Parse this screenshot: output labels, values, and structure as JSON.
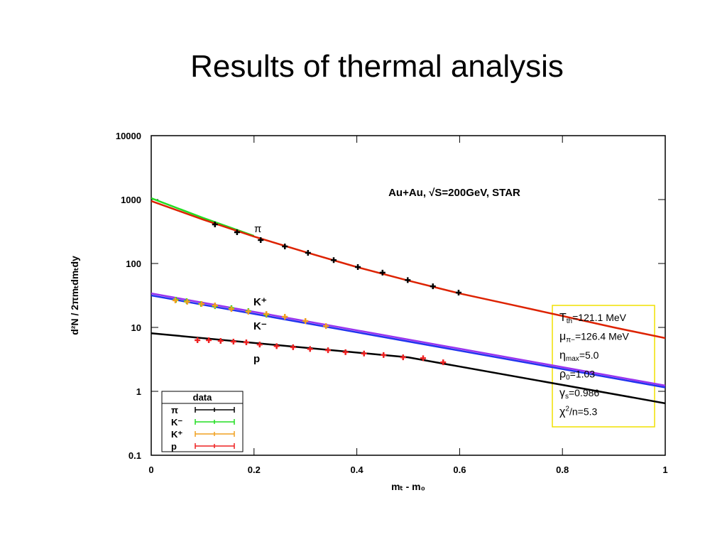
{
  "header": {
    "title": "Results of thermal analysis"
  },
  "chart_data": {
    "type": "scatter",
    "ylog": true,
    "xlabel": "mₜ - m₀",
    "ylabel": "d²N / 2πmₜdmₜdy",
    "annotation": "Au+Au, √S=200GeV, STAR",
    "xlim": [
      0,
      1
    ],
    "xticks": [
      0,
      0.2,
      0.4,
      0.6,
      0.8,
      1
    ],
    "ylim": [
      0.1,
      10000
    ],
    "yticks": [
      0.1,
      1,
      10,
      100,
      1000,
      10000
    ],
    "legend_title": "data",
    "legend": "lower left",
    "series": [
      {
        "name": "π",
        "color": "#000000",
        "x": [
          0.124,
          0.167,
          0.213,
          0.26,
          0.305,
          0.355,
          0.402,
          0.45,
          0.499,
          0.548,
          0.598
        ],
        "values": [
          409,
          308,
          233,
          185,
          147,
          113,
          88,
          72,
          55,
          44,
          35
        ]
      },
      {
        "name": "K⁻",
        "color": "#22dd22",
        "x": [
          0.048,
          0.069,
          0.097,
          0.124,
          0.156,
          0.189,
          0.224
        ],
        "values": [
          27.1,
          25.8,
          23.3,
          21.5,
          20,
          18,
          15.8
        ]
      },
      {
        "name": "K⁺",
        "color": "#f0a020",
        "x": [
          0.047,
          0.07,
          0.098,
          0.124,
          0.156,
          0.189,
          0.224,
          0.26,
          0.3,
          0.34
        ],
        "values": [
          26.5,
          25.2,
          23.3,
          22,
          19.4,
          17.6,
          16.2,
          14.7,
          12.6,
          10.5
        ]
      },
      {
        "name": "p",
        "color": "#ee2222",
        "x": [
          0.09,
          0.112,
          0.135,
          0.16,
          0.185,
          0.211,
          0.244,
          0.276,
          0.309,
          0.344,
          0.378,
          0.414,
          0.452,
          0.49,
          0.529,
          0.568
        ],
        "values": [
          6.3,
          6.3,
          6.15,
          6.0,
          5.85,
          5.4,
          5.1,
          4.9,
          4.6,
          4.4,
          4.1,
          3.9,
          3.7,
          3.4,
          3.3,
          2.85
        ]
      }
    ],
    "fits": [
      {
        "color": "#22dd22",
        "x": [
          0,
          0.1,
          0.2
        ],
        "values": [
          1050,
          520,
          270
        ]
      },
      {
        "color": "#dd2200",
        "x": [
          0,
          0.1,
          0.2,
          0.3,
          0.4,
          0.5,
          0.6,
          0.7,
          0.8,
          0.9,
          1
        ],
        "values": [
          950,
          489,
          264,
          151,
          88,
          54,
          34,
          22.7,
          15.1,
          10,
          6.8
        ]
      },
      {
        "color": "#9933ee",
        "x": [
          0,
          1
        ],
        "values": [
          34,
          1.23
        ]
      },
      {
        "color": "#2233ee",
        "x": [
          0,
          1
        ],
        "values": [
          31.6,
          1.15
        ]
      },
      {
        "color": "#000000",
        "x": [
          0,
          0.5,
          1
        ],
        "values": [
          8.1,
          3.4,
          0.65
        ]
      }
    ],
    "curve_labels": [
      "π",
      "K⁺",
      "K⁻",
      "p"
    ],
    "params": [
      {
        "main": "T",
        "sub": "th",
        "rest": "=121.1 MeV"
      },
      {
        "main": "μ",
        "sub": "π−",
        "rest": "=126.4 MeV"
      },
      {
        "main": "η",
        "sub": "max",
        "rest": "=5.0"
      },
      {
        "main": "ρ",
        "sub": "0",
        "rest": "=1.03"
      },
      {
        "main": "γ",
        "sub": "s",
        "rest": "=0.986"
      },
      {
        "main": "χ",
        "sup": "2",
        "rest": "/n=5.3"
      }
    ]
  }
}
